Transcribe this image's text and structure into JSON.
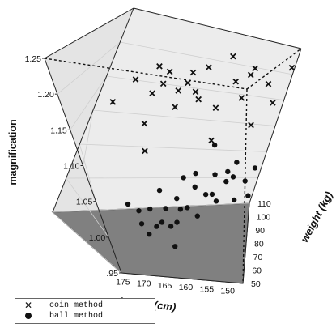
{
  "chart_data": {
    "type": "scatter3d",
    "zlabel": "magnification",
    "xlabel": "height (cm)",
    "ylabel": "weight (kg)",
    "x_ticks": [
      "175",
      "170",
      "165",
      "160",
      "155",
      "150"
    ],
    "y_ticks": [
      "50",
      "60",
      "70",
      "80",
      "90",
      "100",
      "110"
    ],
    "z_ticks": [
      ".95",
      "1.00",
      "1.05",
      "1.10",
      "1.15",
      "1.20",
      "1.25"
    ],
    "xlim": [
      150,
      178
    ],
    "ylim": [
      50,
      110
    ],
    "zlim": [
      0.95,
      1.25
    ],
    "legend_position": "bottom-left",
    "series": [
      {
        "name": "coin method",
        "marker": "x",
        "color": "#111111",
        "points": [
          [
            171,
            57,
            1.19
          ],
          [
            168,
            63,
            1.22
          ],
          [
            166,
            65,
            1.2
          ],
          [
            165,
            67,
            1.24
          ],
          [
            164,
            70,
            1.23
          ],
          [
            163,
            72,
            1.2
          ],
          [
            162,
            75,
            1.21
          ],
          [
            161,
            77,
            1.195
          ],
          [
            158,
            80,
            1.17
          ],
          [
            156,
            85,
            1.21
          ],
          [
            155,
            88,
            1.18
          ],
          [
            154,
            90,
            1.23
          ],
          [
            152,
            95,
            1.2
          ],
          [
            151,
            100,
            1.16
          ],
          [
            153,
            92,
            1.13
          ],
          [
            159,
            75,
            1.24
          ],
          [
            167,
            60,
            1.16
          ],
          [
            162,
            80,
            1.22
          ],
          [
            157,
            85,
            1.25
          ],
          [
            160,
            73,
            1.19
          ],
          [
            158,
            78,
            1.12
          ],
          [
            165,
            70,
            1.21
          ],
          [
            163,
            68,
            1.18
          ],
          [
            168,
            66,
            1.11
          ],
          [
            150,
            105,
            1.22
          ],
          [
            155,
            95,
            1.21
          ]
        ]
      },
      {
        "name": "ball method",
        "marker": "dot",
        "color": "#111111",
        "points": [
          [
            172,
            58,
            1.04
          ],
          [
            170,
            60,
            1.01
          ],
          [
            168,
            62,
            1.03
          ],
          [
            167,
            65,
            1.0
          ],
          [
            166,
            68,
            1.05
          ],
          [
            165,
            70,
            1.02
          ],
          [
            164,
            72,
            0.99
          ],
          [
            163,
            74,
            1.03
          ],
          [
            162,
            76,
            1.06
          ],
          [
            161,
            78,
            1.01
          ],
          [
            160,
            80,
            1.04
          ],
          [
            159,
            82,
            0.99
          ],
          [
            158,
            85,
            1.02
          ],
          [
            157,
            87,
            1.05
          ],
          [
            156,
            90,
            1.0
          ],
          [
            155,
            92,
            1.03
          ],
          [
            154,
            94,
            1.06
          ],
          [
            153,
            96,
            0.99
          ],
          [
            152,
            98,
            1.02
          ],
          [
            151,
            100,
            1.04
          ],
          [
            169,
            57,
            1.0
          ],
          [
            166,
            63,
            1.01
          ],
          [
            163,
            70,
            1.0
          ],
          [
            160,
            75,
            1.07
          ],
          [
            157,
            80,
            1.03
          ],
          [
            154,
            86,
            1.05
          ],
          [
            151,
            95,
            1.0
          ],
          [
            170,
            66,
            1.02
          ],
          [
            164,
            60,
            0.98
          ],
          [
            158,
            92,
            1.09
          ],
          [
            155,
            85,
            1.06
          ],
          [
            162,
            82,
            1.0
          ]
        ]
      }
    ]
  },
  "legend": {
    "items": [
      {
        "symbol": "x",
        "label": "coin method"
      },
      {
        "symbol": "dot",
        "label": "ball method"
      }
    ]
  }
}
